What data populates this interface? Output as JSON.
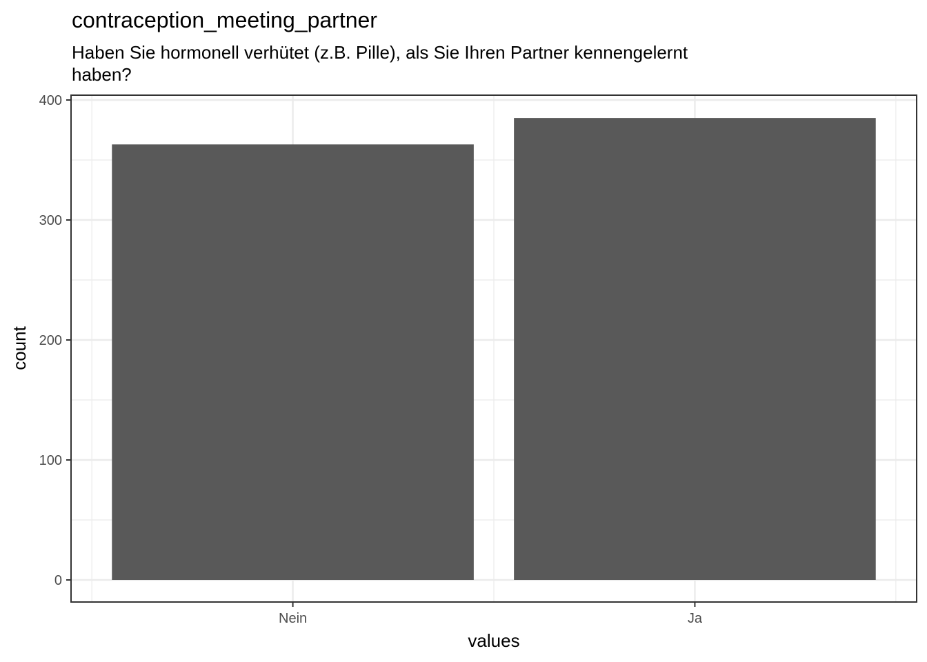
{
  "chart_data": {
    "type": "bar",
    "title": "contraception_meeting_partner",
    "subtitle": "Haben Sie hormonell verhütet (z.B. Pille), als Sie Ihren Partner kennengelernt haben?",
    "xlabel": "values",
    "ylabel": "count",
    "categories": [
      "Nein",
      "Ja"
    ],
    "values": [
      363,
      385
    ],
    "ylim": [
      -18,
      400
    ],
    "yticks": [
      0,
      100,
      200,
      300,
      400
    ],
    "ytick_labels": [
      "0",
      "100",
      "200",
      "300",
      "400"
    ],
    "grid": true,
    "bar_color": "#595959",
    "grid_color": "#ebebeb"
  }
}
